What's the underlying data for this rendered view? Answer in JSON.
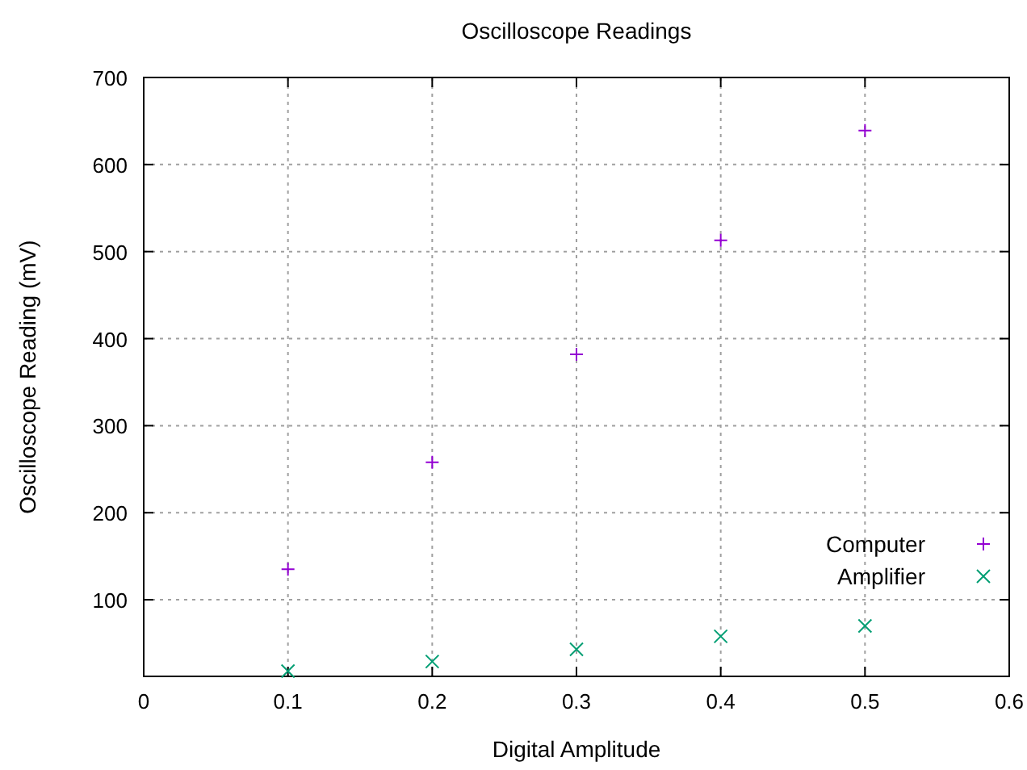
{
  "chart_data": {
    "type": "scatter",
    "title": "Oscilloscope Readings",
    "xlabel": "Digital Amplitude",
    "ylabel": "Oscilloscope Reading (mV)",
    "xlim": [
      0,
      0.6
    ],
    "xticks": [
      0,
      0.1,
      0.2,
      0.3,
      0.4,
      0.5,
      0.6
    ],
    "ylim": [
      12,
      700
    ],
    "yticks": [
      100,
      200,
      300,
      400,
      500,
      600,
      700
    ],
    "grid": true,
    "legend": "bottom right",
    "series": [
      {
        "name": "Computer",
        "color": "#9400d3",
        "marker": "plus",
        "x": [
          0.1,
          0.2,
          0.3,
          0.4,
          0.5
        ],
        "values": [
          135,
          258,
          382,
          513,
          639
        ]
      },
      {
        "name": "Amplifier",
        "color": "#009e73",
        "marker": "cross",
        "x": [
          0.1,
          0.2,
          0.3,
          0.4,
          0.5
        ],
        "values": [
          18,
          29,
          43,
          58,
          70
        ]
      }
    ]
  }
}
